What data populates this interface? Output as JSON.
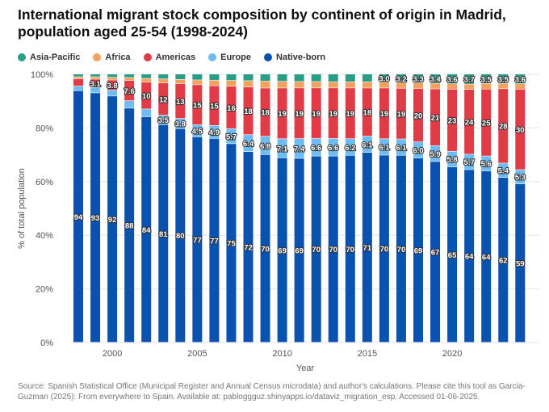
{
  "chart_data": {
    "type": "bar",
    "stacked": true,
    "title": "International migrant stock composition by continent of origin in Madrid, population aged 25-54 (1998-2024)",
    "xlabel": "Year",
    "ylabel": "% of total population",
    "ylim": [
      0,
      100
    ],
    "yticks": [
      "0%",
      "20%",
      "40%",
      "60%",
      "80%",
      "100%"
    ],
    "xticks": [
      "2000",
      "2005",
      "2010",
      "2015",
      "2020"
    ],
    "legend_position": "top-left",
    "categories": [
      1998,
      1999,
      2000,
      2001,
      2002,
      2003,
      2004,
      2005,
      2006,
      2007,
      2008,
      2009,
      2010,
      2011,
      2012,
      2013,
      2014,
      2015,
      2016,
      2017,
      2018,
      2019,
      2020,
      2021,
      2022,
      2023,
      2024
    ],
    "series": [
      {
        "name": "Native-born",
        "color": "#0a52b0",
        "values": [
          94,
          93,
          92,
          88,
          84,
          81,
          80,
          77,
          77,
          75,
          72,
          70,
          69,
          69,
          70,
          70,
          70,
          71,
          70,
          70,
          69,
          67,
          65,
          64,
          64,
          62,
          59
        ]
      },
      {
        "name": "Europe",
        "color": "#6fbcf2",
        "values": [
          1.7,
          2.0,
          2.2,
          2.8,
          2.9,
          3.5,
          3.8,
          4.5,
          4.9,
          5.7,
          6.4,
          6.8,
          7.1,
          7.4,
          6.6,
          6.6,
          6.2,
          6.1,
          6.1,
          6.1,
          6.0,
          5.9,
          5.8,
          5.7,
          5.6,
          5.4,
          5.3
        ]
      },
      {
        "name": "Americas",
        "color": "#e03b47",
        "values": [
          2.7,
          3.1,
          3.8,
          7.6,
          10,
          12,
          13,
          15,
          15,
          16,
          18,
          18,
          19,
          19,
          19,
          19,
          19,
          18,
          19,
          19,
          20,
          21,
          23,
          24,
          25,
          28,
          30
        ]
      },
      {
        "name": "Africa",
        "color": "#f3a15e",
        "values": [
          0.8,
          0.9,
          1.0,
          1.1,
          1.4,
          1.5,
          1.6,
          1.8,
          2.1,
          2.2,
          2.4,
          2.6,
          2.5,
          2.4,
          2.4,
          2.3,
          2.3,
          2.3,
          2.2,
          2.1,
          2.1,
          2.1,
          2.0,
          2.0,
          2.1,
          2.0,
          2.0
        ]
      },
      {
        "name": "Asia-Pacific",
        "color": "#2a9d87",
        "values": [
          1.0,
          1.0,
          1.2,
          1.3,
          1.6,
          1.8,
          2.0,
          2.2,
          2.3,
          2.4,
          2.5,
          2.6,
          2.7,
          2.8,
          2.8,
          2.9,
          2.9,
          2.9,
          3.0,
          3.2,
          3.3,
          3.4,
          3.6,
          3.7,
          3.5,
          3.5,
          3.6
        ]
      }
    ]
  },
  "legend": [
    "Asia-Pacific",
    "Africa",
    "Americas",
    "Europe",
    "Native-born"
  ],
  "legend_colors": [
    "#2a9d87",
    "#f3a15e",
    "#e03b47",
    "#6fbcf2",
    "#0a52b0"
  ],
  "source": "Source: Spanish Statistical Office (Municipal Register and Annual Census microdata) and author's calculations. Please cite this tool as Garcia-Guzman (2025): From everywhere to Spain. Available at: pabloggguz.shinyapps.io/dataviz_migration_esp. Accessed 01-06-2025."
}
